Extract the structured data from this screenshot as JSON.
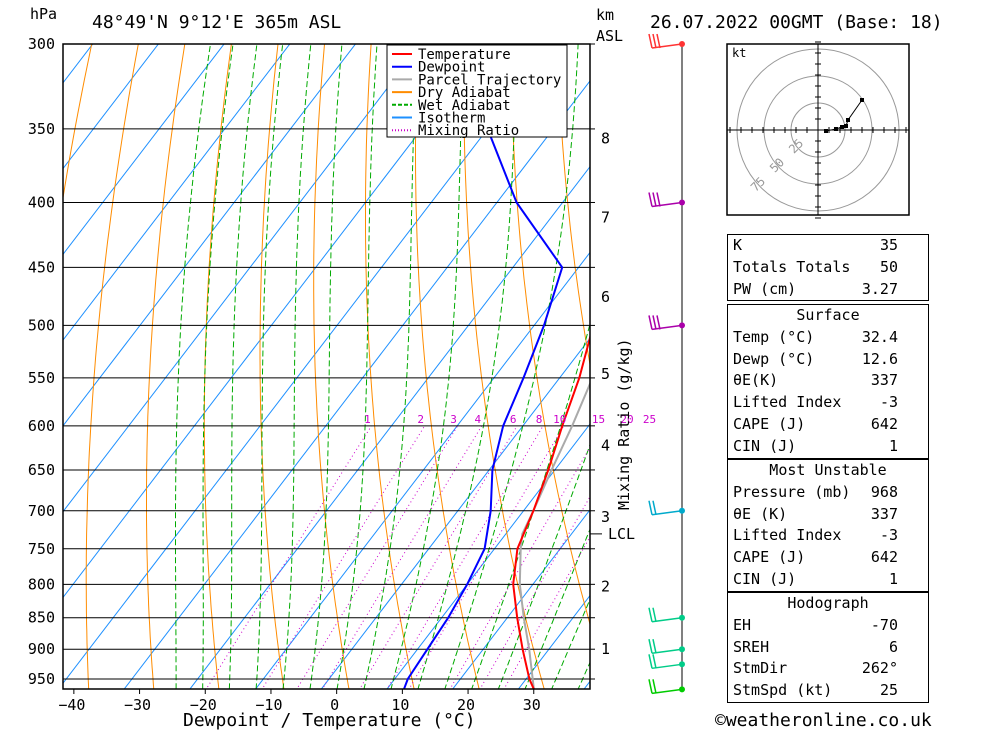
{
  "header": {
    "pressure_unit": "hPa",
    "location": "48°49'N 9°12'E 365m ASL",
    "km_label": "km",
    "asl_label": "ASL",
    "datetime": "26.07.2022 00GMT (Base: 18)"
  },
  "chart_data": {
    "type": "skew-t log-p",
    "xlabel": "Dewpoint / Temperature (°C)",
    "ylabel": "hPa",
    "x_ticks": [
      -40,
      -30,
      -20,
      -10,
      0,
      10,
      20,
      30
    ],
    "pressure_levels": [
      300,
      350,
      400,
      450,
      500,
      550,
      600,
      650,
      700,
      750,
      800,
      850,
      900,
      950
    ],
    "ylim": [
      300,
      968
    ],
    "km_ticks": [
      {
        "km": "1",
        "p": 900
      },
      {
        "km": "2",
        "p": 803
      },
      {
        "km": "3",
        "p": 708
      },
      {
        "km": "4",
        "p": 622
      },
      {
        "km": "5",
        "p": 546
      },
      {
        "km": "6",
        "p": 475
      },
      {
        "km": "7",
        "p": 411
      },
      {
        "km": "8",
        "p": 356
      }
    ],
    "lcl_label": "LCL",
    "lcl_pressure": 730,
    "mixing_ratio_label": "Mixing Ratio (g/kg)",
    "mixing_ratio_values": [
      "1",
      "2",
      "3",
      "4",
      "6",
      "8",
      "10",
      "15",
      "20",
      "25"
    ],
    "legend": [
      "Temperature",
      "Dewpoint",
      "Parcel Trajectory",
      "Dry Adiabat",
      "Wet Adiabat",
      "Isotherm",
      "Mixing Ratio"
    ],
    "colors": {
      "temperature": "#ff0000",
      "dewpoint": "#0000ff",
      "parcel": "#aaaaaa",
      "dry_adiabat": "#ff8c00",
      "wet_adiabat": "#00aa00",
      "isotherm": "#1e90ff",
      "mixing_ratio": "#cc00cc"
    },
    "series": [
      {
        "name": "Temperature",
        "points": [
          [
            968,
            32.4
          ],
          [
            950,
            30.5
          ],
          [
            900,
            26
          ],
          [
            850,
            21.5
          ],
          [
            800,
            17
          ],
          [
            750,
            13.5
          ],
          [
            700,
            11.5
          ],
          [
            650,
            9
          ],
          [
            600,
            6
          ],
          [
            550,
            3
          ],
          [
            500,
            -1
          ],
          [
            450,
            -5.5
          ],
          [
            400,
            -12
          ],
          [
            350,
            -20
          ],
          [
            300,
            -28
          ]
        ]
      },
      {
        "name": "Dewpoint",
        "points": [
          [
            968,
            12.6
          ],
          [
            950,
            12
          ],
          [
            900,
            11.5
          ],
          [
            850,
            11
          ],
          [
            800,
            10
          ],
          [
            750,
            8.5
          ],
          [
            700,
            5
          ],
          [
            650,
            0.5
          ],
          [
            600,
            -3
          ],
          [
            550,
            -5.5
          ],
          [
            500,
            -8.5
          ],
          [
            450,
            -12.5
          ],
          [
            400,
            -27
          ],
          [
            350,
            -40
          ],
          [
            300,
            -44
          ]
        ]
      },
      {
        "name": "Parcel Trajectory",
        "points": [
          [
            968,
            32.4
          ],
          [
            900,
            27
          ],
          [
            850,
            22.5
          ],
          [
            800,
            18
          ],
          [
            750,
            14
          ],
          [
            730,
            12.5
          ],
          [
            700,
            11.5
          ],
          [
            650,
            9.5
          ],
          [
            600,
            7.5
          ],
          [
            550,
            5
          ],
          [
            500,
            1.5
          ],
          [
            450,
            -2.5
          ],
          [
            400,
            -8
          ],
          [
            350,
            -15.5
          ],
          [
            300,
            -23.5
          ]
        ]
      }
    ],
    "wind_barbs": [
      {
        "p": 300,
        "color": "#ff3333"
      },
      {
        "p": 400,
        "color": "#aa00aa"
      },
      {
        "p": 500,
        "color": "#aa00aa"
      },
      {
        "p": 700,
        "color": "#00aacc"
      },
      {
        "p": 850,
        "color": "#00cc88"
      },
      {
        "p": 900,
        "color": "#00cc88"
      },
      {
        "p": 925,
        "color": "#00cc88"
      },
      {
        "p": 968,
        "color": "#00cc00"
      }
    ],
    "hodograph": {
      "unit": "kt",
      "ring_labels": [
        "25",
        "50",
        "75"
      ]
    }
  },
  "indices": {
    "k_label": "K",
    "k_value": "35",
    "tt_label": "Totals Totals",
    "tt_value": "50",
    "pw_label": "PW (cm)",
    "pw_value": "3.27"
  },
  "surface": {
    "title": "Surface",
    "temp_label": "Temp (°C)",
    "temp_value": "32.4",
    "dewp_label": "Dewp (°C)",
    "dewp_value": "12.6",
    "theta_label": "θE(K)",
    "theta_value": "337",
    "li_label": "Lifted Index",
    "li_value": "-3",
    "cape_label": "CAPE (J)",
    "cape_value": "642",
    "cin_label": "CIN (J)",
    "cin_value": "1"
  },
  "most_unstable": {
    "title": "Most Unstable",
    "pressure_label": "Pressure (mb)",
    "pressure_value": "968",
    "theta_label": "θE (K)",
    "theta_value": "337",
    "li_label": "Lifted Index",
    "li_value": "-3",
    "cape_label": "CAPE (J)",
    "cape_value": "642",
    "cin_label": "CIN (J)",
    "cin_value": "1"
  },
  "hodograph_table": {
    "title": "Hodograph",
    "eh_label": "EH",
    "eh_value": "-70",
    "sreh_label": "SREH",
    "sreh_value": "6",
    "stmdir_label": "StmDir",
    "stmdir_value": "262°",
    "stmspd_label": "StmSpd (kt)",
    "stmspd_value": "25"
  },
  "footer": {
    "copyright": "©weatheronline.co.uk"
  }
}
